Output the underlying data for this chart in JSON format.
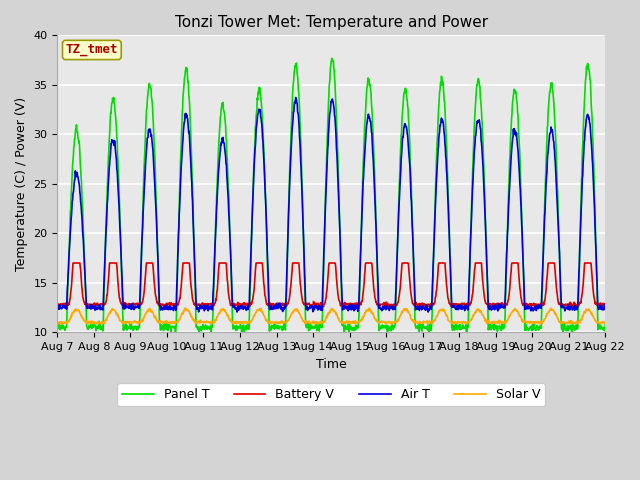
{
  "title": "Tonzi Tower Met: Temperature and Power",
  "xlabel": "Time",
  "ylabel": "Temperature (C) / Power (V)",
  "ylim": [
    10,
    40
  ],
  "x_tick_labels": [
    "Aug 7",
    "Aug 8",
    "Aug 9",
    "Aug 10",
    "Aug 11",
    "Aug 12",
    "Aug 13",
    "Aug 14",
    "Aug 15",
    "Aug 16",
    "Aug 17",
    "Aug 18",
    "Aug 19",
    "Aug 20",
    "Aug 21",
    "Aug 22"
  ],
  "annotation_text": "TZ_tmet",
  "annotation_bg": "#ffffcc",
  "annotation_border": "#aaaaaa",
  "annotation_fg": "#aa0000",
  "panel_t_color": "#00dd00",
  "battery_v_color": "#dd0000",
  "air_t_color": "#0000dd",
  "solar_v_color": "#ffaa00",
  "fig_bg": "#d4d4d4",
  "plot_bg": "#e8e8e8",
  "grid_color": "#ffffff",
  "title_fontsize": 11,
  "axis_fontsize": 9,
  "tick_fontsize": 8,
  "legend_fontsize": 9,
  "linewidth": 1.2,
  "panel_peaks": [
    30.5,
    33.5,
    35.0,
    36.5,
    33.0,
    34.5,
    37.0,
    37.5,
    35.5,
    34.5,
    35.5,
    35.5,
    34.5,
    35.0,
    37.0
  ],
  "air_peaks": [
    26.0,
    29.5,
    30.5,
    32.0,
    29.5,
    32.5,
    33.5,
    33.5,
    32.0,
    31.0,
    31.5,
    31.5,
    30.5,
    30.5,
    32.0
  ],
  "batt_peaks": [
    16.5,
    16.5,
    16.0,
    16.0,
    16.5,
    16.0,
    16.0,
    16.0,
    16.0,
    16.0,
    16.0,
    16.0,
    16.0,
    16.0,
    16.0
  ]
}
